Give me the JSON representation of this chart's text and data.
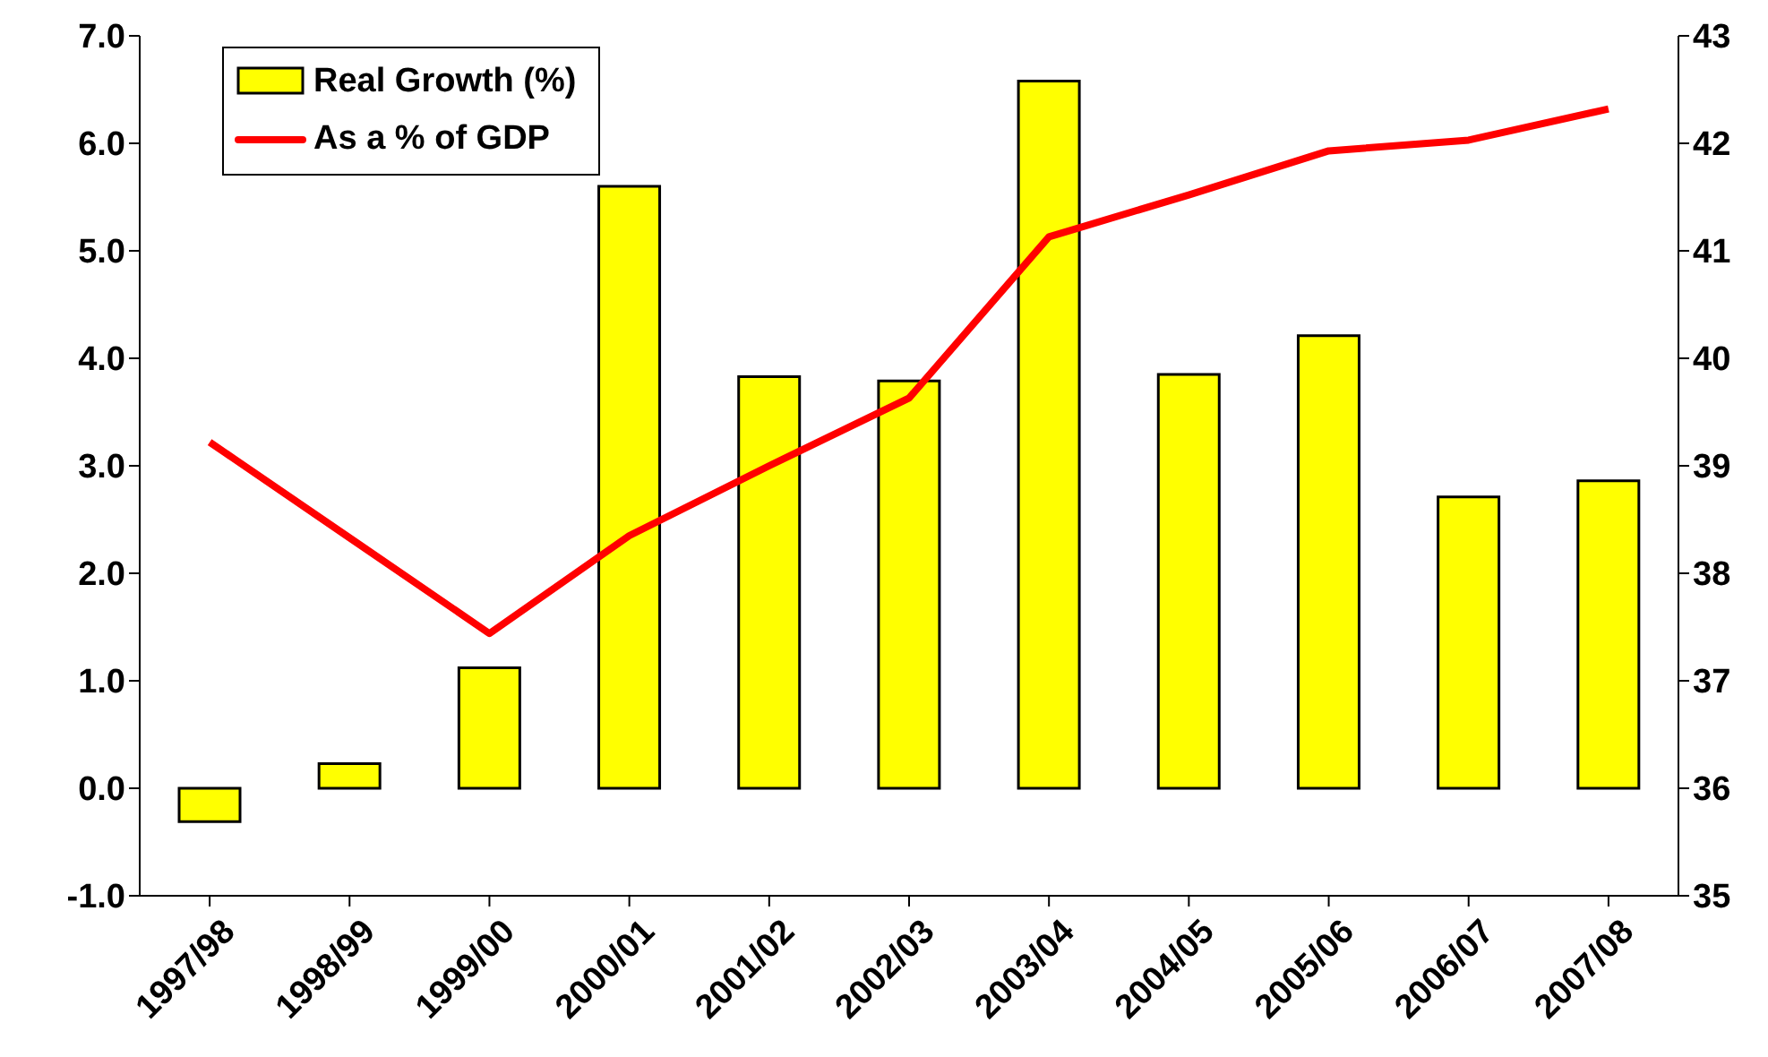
{
  "chart_data": {
    "type": "bar",
    "categories": [
      "1997/98",
      "1998/99",
      "1999/00",
      "2000/01",
      "2001/02",
      "2002/03",
      "2003/04",
      "2004/05",
      "2005/06",
      "2006/07",
      "2007/08"
    ],
    "series": [
      {
        "name": "Real Growth (%)",
        "color": "#ffff00",
        "values": [
          -0.31,
          0.23,
          1.12,
          5.6,
          3.83,
          3.79,
          6.58,
          3.85,
          4.21,
          2.71,
          2.86
        ]
      },
      {
        "name": "As a % of GDP",
        "type": "line",
        "axis": "y2",
        "color": "#ff0000",
        "values": [
          39.22,
          38.33,
          37.44,
          38.35,
          39.0,
          39.63,
          41.13,
          41.52,
          41.93,
          42.03,
          42.32
        ]
      }
    ],
    "ylim": [
      -1,
      7
    ],
    "yticks": [
      {
        "value": -1,
        "label": "-1.0"
      },
      {
        "value": 0,
        "label": "0.0"
      },
      {
        "value": 1,
        "label": "1.0"
      },
      {
        "value": 2,
        "label": "2.0"
      },
      {
        "value": 3,
        "label": "3.0"
      },
      {
        "value": 4,
        "label": "4.0"
      },
      {
        "value": 5,
        "label": "5.0"
      },
      {
        "value": 6,
        "label": "6.0"
      },
      {
        "value": 7,
        "label": "7.0"
      }
    ],
    "y2lim": [
      35,
      43
    ],
    "y2ticks": [
      35,
      36,
      37,
      38,
      39,
      40,
      41,
      42,
      43
    ],
    "grid": false,
    "legend": "top left",
    "marker": "none"
  }
}
